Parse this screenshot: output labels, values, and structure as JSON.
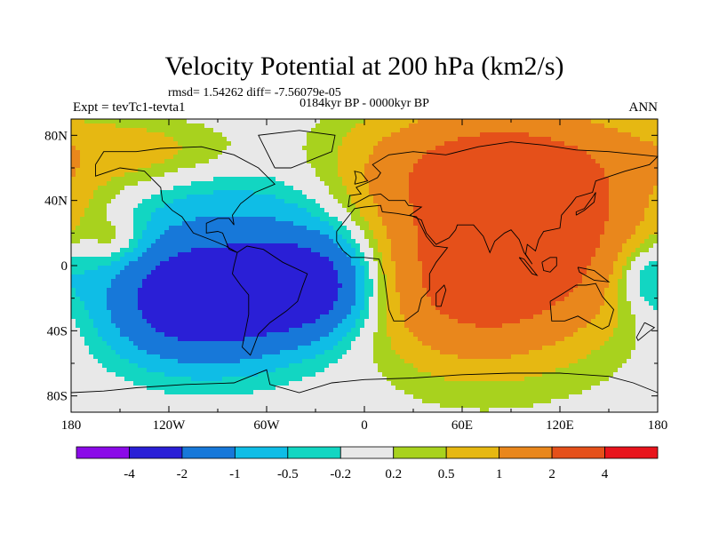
{
  "chart_data": {
    "type": "heatmap",
    "title": "Velocity Potential at 200 hPa (km2/s)",
    "stats_line": "rmsd= 1.54262 diff= -7.56079e-05",
    "period_line": "0184kyr BP - 0000kyr BP",
    "experiment_label": "Expt = tevTc1-tevta1",
    "season_label": "ANN",
    "x_ticks": [
      "180",
      "120W",
      "60W",
      "0",
      "60E",
      "120E",
      "180"
    ],
    "x_tick_values": [
      -180,
      -120,
      -60,
      0,
      60,
      120,
      180
    ],
    "y_ticks": [
      "80N",
      "40N",
      "0",
      "40S",
      "80S"
    ],
    "y_tick_values": [
      80,
      40,
      0,
      -40,
      -80
    ],
    "xlim": [
      -180,
      180
    ],
    "ylim": [
      -90,
      90
    ],
    "levels": [
      "-4",
      "-2",
      "-1",
      "-0.5",
      "-0.2",
      "0.2",
      "0.5",
      "1",
      "2",
      "4"
    ],
    "level_values": [
      -4,
      -2,
      -1,
      -0.5,
      -0.2,
      0.2,
      0.5,
      1,
      2,
      4
    ],
    "colors": [
      "#8b0ae8",
      "#2a1fd6",
      "#1778d9",
      "#0fbde6",
      "#12d6c2",
      "#e8e8e8",
      "#a8d21e",
      "#e6b812",
      "#e9871c",
      "#e5501a",
      "#e8141c"
    ],
    "centers": [
      {
        "lon": -100,
        "lat": -22,
        "amp": -3.0,
        "sx": 38,
        "sy": 24
      },
      {
        "lon": -35,
        "lat": -12,
        "amp": -2.4,
        "sx": 26,
        "sy": 20
      },
      {
        "lon": -75,
        "lat": 15,
        "amp": -0.9,
        "sx": 60,
        "sy": 45
      },
      {
        "lon": 95,
        "lat": 20,
        "amp": 3.1,
        "sx": 50,
        "sy": 40
      },
      {
        "lon": 60,
        "lat": -20,
        "amp": 1.2,
        "sx": 40,
        "sy": 30
      },
      {
        "lon": 70,
        "lat": 60,
        "amp": 1.5,
        "sx": 65,
        "sy": 25
      },
      {
        "lon": -130,
        "lat": 70,
        "amp": 0.8,
        "sx": 45,
        "sy": 15
      },
      {
        "lon": 170,
        "lat": -5,
        "amp": -0.9,
        "sx": 15,
        "sy": 15
      },
      {
        "lon": -150,
        "lat": 15,
        "amp": 0.6,
        "sx": 12,
        "sy": 10
      }
    ],
    "base_offset": 0.05
  }
}
